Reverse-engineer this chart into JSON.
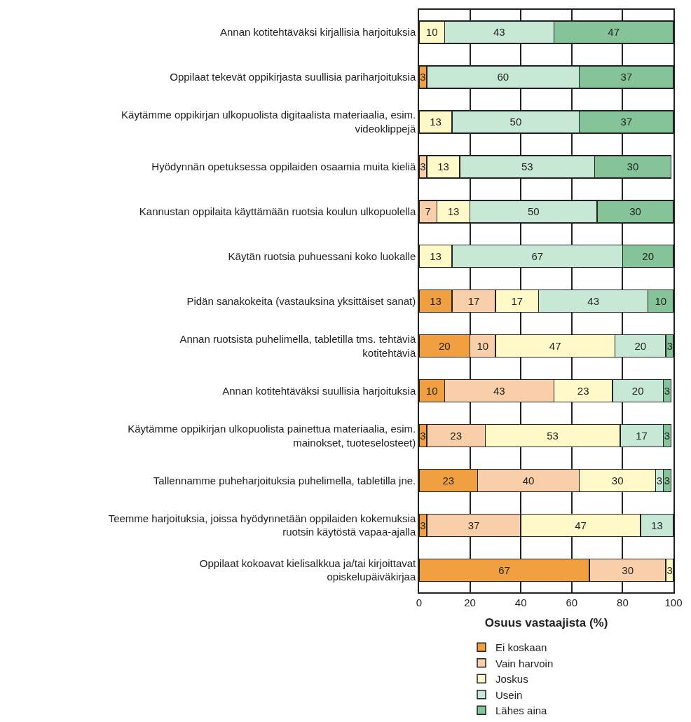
{
  "chart_data": {
    "type": "bar",
    "orientation": "horizontal",
    "stacked": true,
    "data_labels": true,
    "xlabel": "Osuus vastaajista (%)",
    "categories": [
      "Annan kotitehtäväksi kirjallisia harjoituksia",
      "Oppilaat tekevät oppikirjasta suullisia pariharjoituksia",
      "Käytämme oppikirjan ulkopuolista digitaalista materiaalia, esim. videoklippejä",
      "Hyödynnän opetuksessa oppilaiden osaamia muita kieliä",
      "Kannustan oppilaita käyttämään ruotsia koulun ulkopuolella",
      "Käytän ruotsia puhuessani koko luokalle",
      "Pidän sanakokeita (vastauksina yksittäiset sanat)",
      "Annan ruotsista puhelimella, tabletilla tms. tehtäviä kotitehtäviä",
      "Annan kotitehtäväksi suullisia harjoituksia",
      "Käytämme oppikirjan ulkopuolista painettua materiaalia, esim. mainokset, tuoteselosteet)",
      "Tallennamme puheharjoituksia puhelimella, tabletilla jne.",
      "Teemme harjoituksia, joissa hyödynnetään oppilaiden kokemuksia ruotsin käytöstä vapaa-ajalla",
      "Oppilaat kokoavat kielisalkkua ja/tai kirjoittavat opiskelupäiväkirjaa"
    ],
    "series": [
      {
        "name": "Ei koskaan",
        "color": "#f0a040",
        "values": [
          null,
          3,
          null,
          null,
          null,
          null,
          13,
          20,
          10,
          3,
          23,
          3,
          67
        ]
      },
      {
        "name": "Vain harvoin",
        "color": "#f8cfa8",
        "values": [
          null,
          null,
          null,
          3,
          7,
          null,
          17,
          10,
          43,
          23,
          40,
          37,
          30
        ]
      },
      {
        "name": "Joskus",
        "color": "#fff9c8",
        "values": [
          10,
          null,
          13,
          13,
          13,
          13,
          17,
          47,
          23,
          53,
          30,
          47,
          3
        ]
      },
      {
        "name": "Usein",
        "color": "#c8e8d6",
        "values": [
          43,
          60,
          50,
          53,
          50,
          67,
          43,
          20,
          20,
          17,
          3,
          13,
          null
        ]
      },
      {
        "name": "Lähes aina",
        "color": "#84c498",
        "values": [
          47,
          37,
          37,
          30,
          30,
          20,
          10,
          3,
          3,
          3,
          3,
          null,
          null
        ]
      }
    ],
    "xlim": [
      0,
      100
    ],
    "xticks": [
      0,
      20,
      40,
      60,
      80,
      100
    ],
    "grid": "x",
    "legend": "bottom"
  }
}
